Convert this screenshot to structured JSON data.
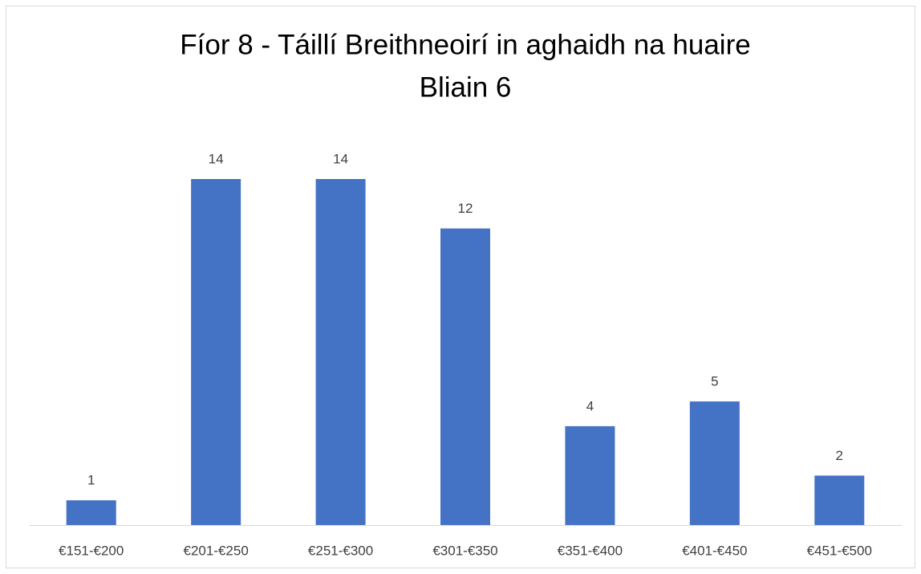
{
  "chart_data": {
    "type": "bar",
    "title": "Fíor 8 - Táillí Breithneoirí in aghaidh na huaire",
    "subtitle": "Bliain 6",
    "categories": [
      "€151-€200",
      "€201-€250",
      "€251-€300",
      "€301-€350",
      "€351-€400",
      "€401-€450",
      "€451-€500"
    ],
    "values": [
      1,
      14,
      14,
      12,
      4,
      5,
      2
    ],
    "color": "#4472c4"
  }
}
